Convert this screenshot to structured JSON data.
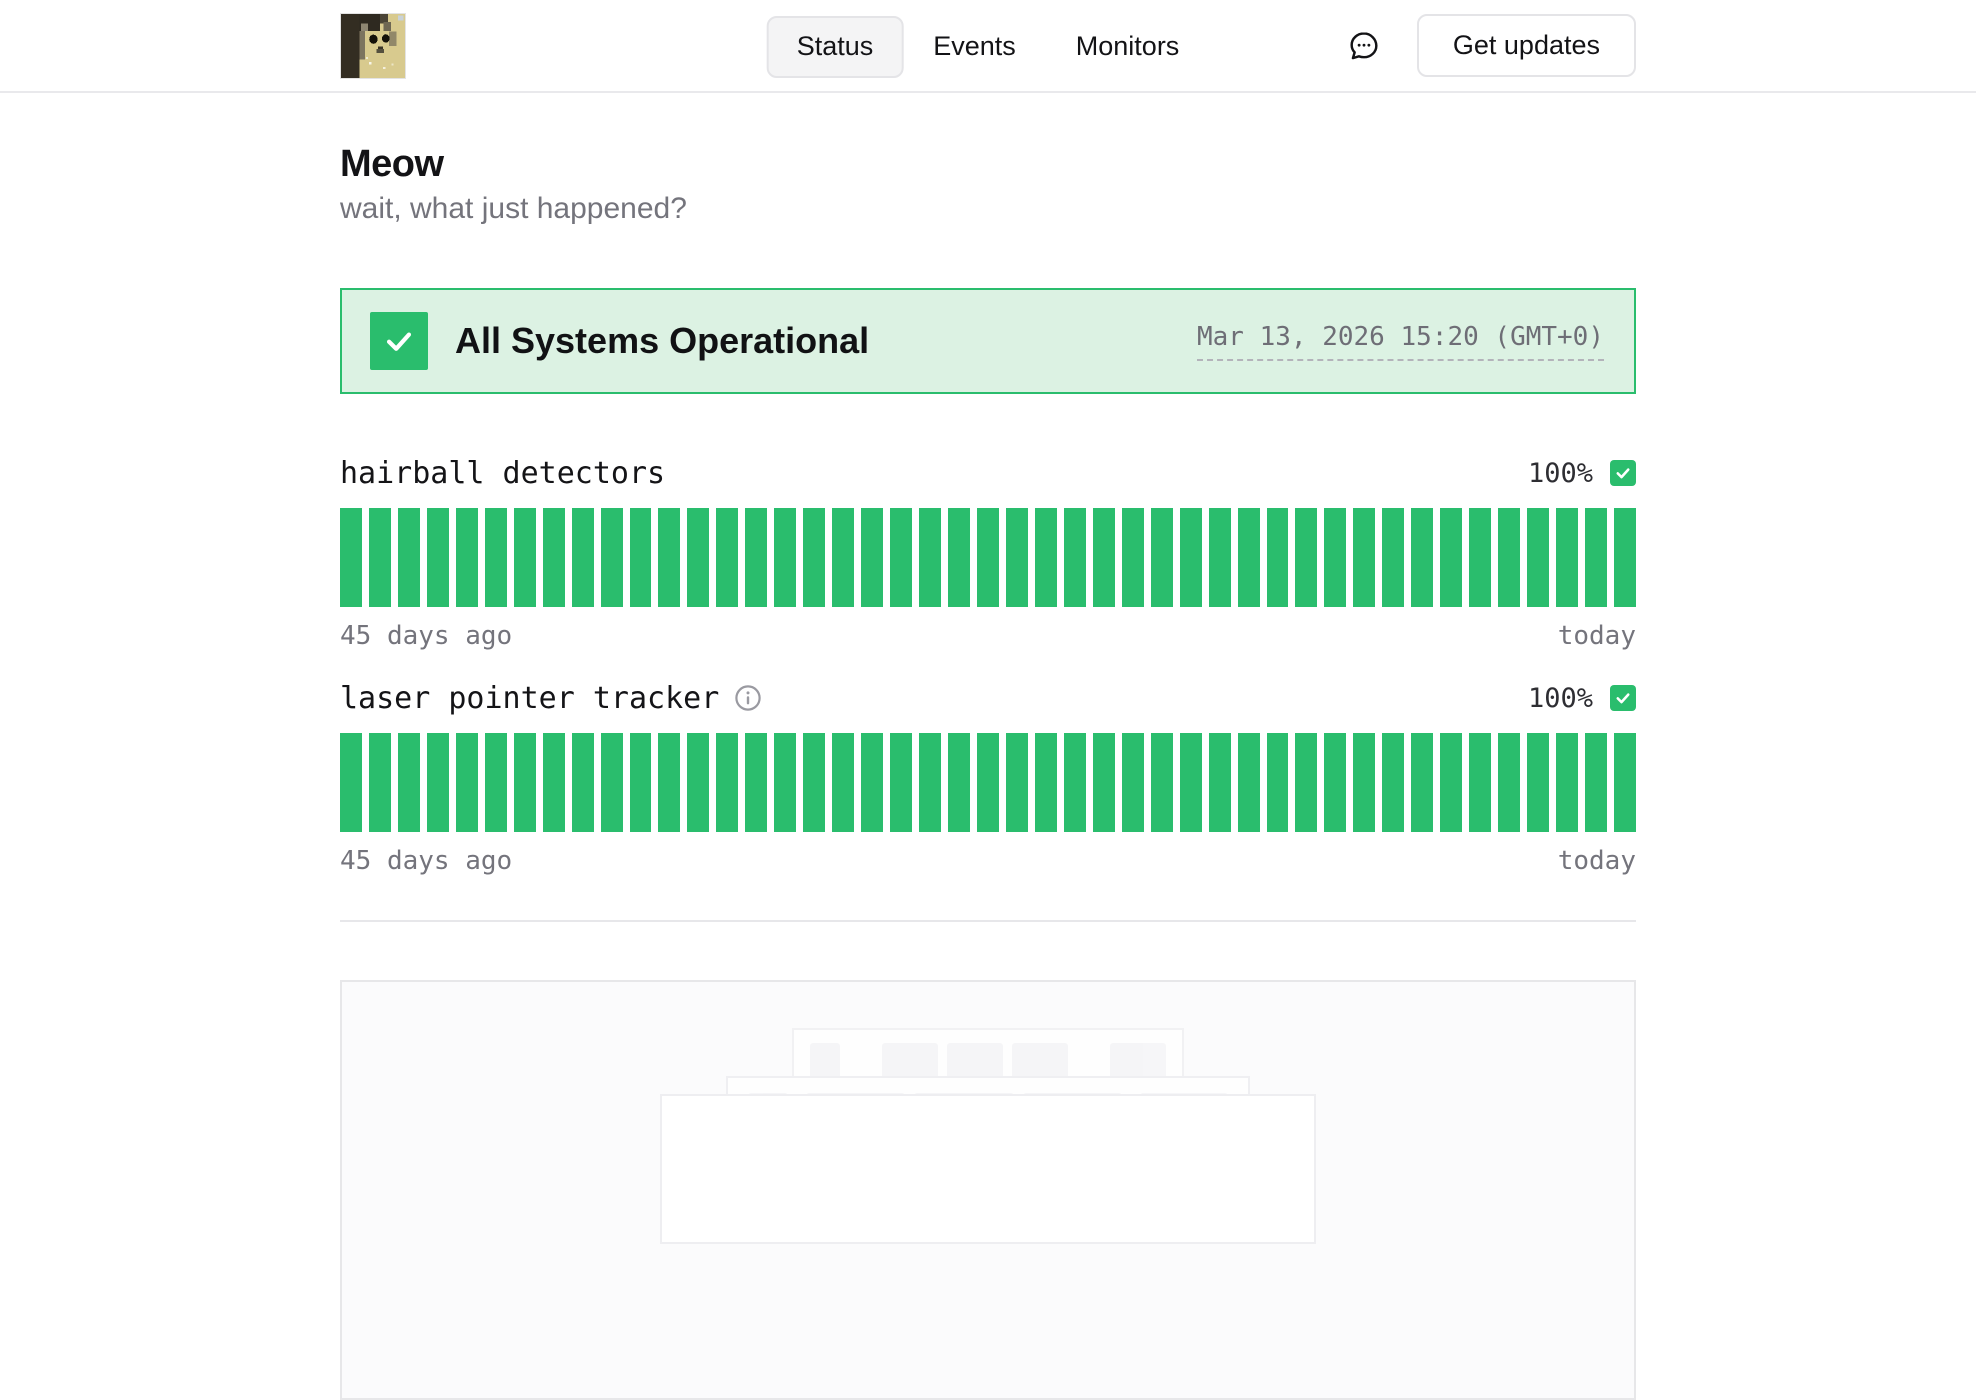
{
  "header": {
    "logo_alt": "pixel cat avatar",
    "nav": [
      {
        "label": "Status",
        "active": true
      },
      {
        "label": "Events",
        "active": false
      },
      {
        "label": "Monitors",
        "active": false
      }
    ],
    "chat_icon": "speech-bubble-icon",
    "get_updates_label": "Get updates"
  },
  "hero": {
    "title": "Meow",
    "subtitle": "wait, what just happened?"
  },
  "status_banner": {
    "label": "All Systems Operational",
    "timestamp": "Mar 13, 2026 15:20 (GMT+0)",
    "check_icon": "check-icon"
  },
  "monitors": [
    {
      "name": "hairball detectors",
      "uptime": "100%",
      "start_label": "45 days ago",
      "end_label": "today",
      "days": 45,
      "daily_status_all": "operational",
      "has_info_icon": false
    },
    {
      "name": "laser pointer tracker",
      "uptime": "100%",
      "start_label": "45 days ago",
      "end_label": "today",
      "days": 45,
      "daily_status_all": "operational",
      "has_info_icon": true
    }
  ],
  "colors": {
    "green": "#2abd6d",
    "green_light_bg": "#dcf2e3",
    "text_dark": "#131316",
    "text_gray": "#74747c",
    "border_gray": "#e4e4e7"
  }
}
